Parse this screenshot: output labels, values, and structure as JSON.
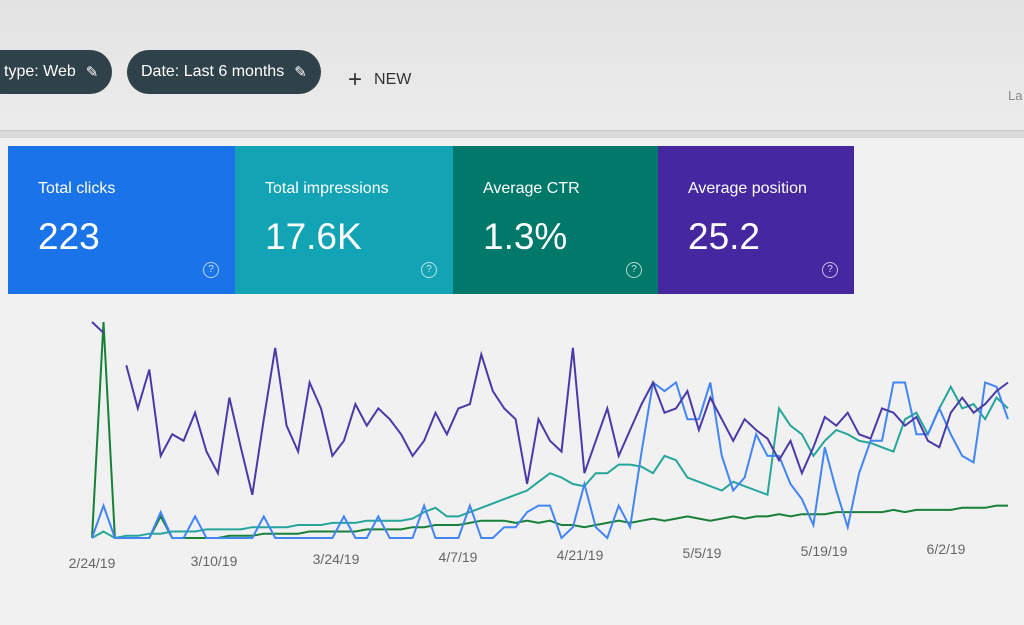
{
  "filters": [
    {
      "label": "type: Web",
      "icon": "pencil-icon"
    },
    {
      "label": "Date: Last 6 months",
      "icon": "pencil-icon"
    }
  ],
  "new_button": {
    "label": "NEW",
    "icon": "plus-icon"
  },
  "right_text": "La",
  "cards": [
    {
      "label": "Total clicks",
      "value": "223",
      "color": "#1a73e8"
    },
    {
      "label": "Total impressions",
      "value": "17.6K",
      "color": "#12a4b5"
    },
    {
      "label": "Average CTR",
      "value": "1.3%",
      "color": "#00796b"
    },
    {
      "label": "Average position",
      "value": "25.2",
      "color": "#4527a0"
    }
  ],
  "chart_data": {
    "type": "line",
    "x_ticks": [
      "2/24/19",
      "3/10/19",
      "3/24/19",
      "4/7/19",
      "4/21/19",
      "5/5/19",
      "5/19/19",
      "6/2/19"
    ],
    "grid": false,
    "series": [
      {
        "key": "position",
        "color": "#4a3aa8",
        "values": [
          100,
          95,
          null,
          80,
          60,
          78,
          38,
          48,
          45,
          58,
          40,
          30,
          65,
          42,
          20,
          55,
          88,
          52,
          40,
          72,
          60,
          38,
          45,
          62,
          52,
          60,
          55,
          48,
          38,
          45,
          58,
          48,
          60,
          62,
          85,
          68,
          60,
          55,
          25,
          55,
          45,
          40,
          88,
          30,
          45,
          60,
          38,
          50,
          62,
          72,
          58,
          60,
          68,
          50,
          65,
          55,
          45,
          55,
          50,
          46,
          36,
          45,
          30,
          42,
          56,
          52,
          58,
          48,
          46,
          60,
          58,
          52,
          56,
          45,
          42,
          58,
          65,
          58,
          62,
          68,
          72
        ]
      },
      {
        "key": "clicks",
        "color": "#4285f4",
        "values": [
          0,
          15,
          0,
          0,
          0,
          0,
          12,
          0,
          0,
          10,
          0,
          0,
          0,
          0,
          0,
          10,
          0,
          0,
          0,
          0,
          0,
          0,
          10,
          0,
          0,
          10,
          0,
          0,
          0,
          15,
          0,
          0,
          0,
          15,
          0,
          0,
          5,
          5,
          12,
          15,
          15,
          0,
          5,
          25,
          5,
          0,
          15,
          5,
          40,
          72,
          68,
          72,
          55,
          55,
          72,
          38,
          22,
          28,
          48,
          38,
          38,
          25,
          18,
          6,
          42,
          22,
          5,
          30,
          45,
          45,
          72,
          72,
          48,
          48,
          60,
          48,
          38,
          35,
          72,
          70,
          55
        ]
      },
      {
        "key": "impressions",
        "color": "#26a69a",
        "values": [
          0,
          3,
          0,
          1,
          1,
          2,
          2,
          3,
          3,
          3,
          4,
          4,
          4,
          4,
          5,
          5,
          5,
          5,
          6,
          6,
          6,
          7,
          7,
          7,
          8,
          8,
          8,
          8,
          9,
          12,
          14,
          10,
          10,
          12,
          14,
          16,
          18,
          20,
          22,
          26,
          30,
          28,
          25,
          24,
          30,
          30,
          34,
          34,
          33,
          30,
          38,
          36,
          28,
          26,
          24,
          22,
          26,
          24,
          22,
          20,
          60,
          52,
          48,
          38,
          45,
          50,
          48,
          45,
          44,
          42,
          40,
          55,
          58,
          48,
          60,
          70,
          60,
          62,
          55,
          65,
          60
        ]
      },
      {
        "key": "ctr",
        "color": "#188038",
        "values": [
          0,
          100,
          0,
          0,
          0,
          0,
          10,
          0,
          0,
          0,
          0,
          0,
          1,
          1,
          1,
          2,
          2,
          2,
          2,
          3,
          3,
          3,
          3,
          3,
          4,
          4,
          4,
          4,
          5,
          5,
          6,
          6,
          6,
          7,
          8,
          8,
          8,
          7,
          8,
          7,
          8,
          6,
          6,
          5,
          6,
          7,
          8,
          7,
          8,
          9,
          8,
          9,
          10,
          9,
          8,
          9,
          10,
          9,
          10,
          10,
          11,
          10,
          11,
          11,
          11,
          12,
          12,
          12,
          12,
          12,
          13,
          12,
          13,
          13,
          13,
          13,
          14,
          14,
          14,
          15,
          15
        ]
      }
    ]
  }
}
